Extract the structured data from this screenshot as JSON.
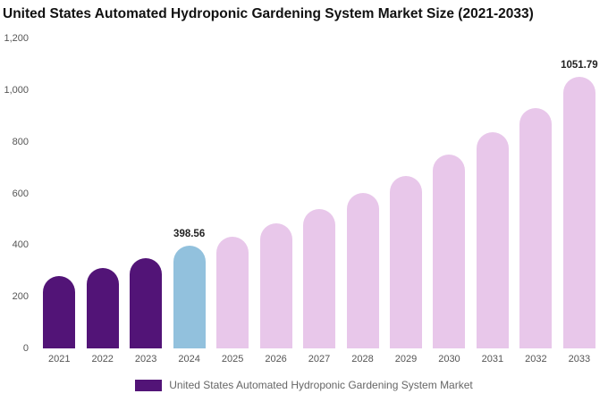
{
  "chart": {
    "title": "United States Automated Hydroponic Gardening System Market Size (2021-2033)",
    "legend_label": "United States Automated Hydroponic Gardening System Market",
    "legend_color": "#521477"
  },
  "chart_data": {
    "type": "bar",
    "title": "United States Automated Hydroponic Gardening System Market Size (2021-2033)",
    "categories": [
      "2021",
      "2022",
      "2023",
      "2024",
      "2025",
      "2026",
      "2027",
      "2028",
      "2029",
      "2030",
      "2031",
      "2032",
      "2033"
    ],
    "values": [
      280,
      313,
      348,
      398.56,
      434,
      483,
      538,
      602,
      668,
      749,
      838,
      932,
      1051.79
    ],
    "bar_colors": [
      "#521477",
      "#521477",
      "#521477",
      "#92C1DD",
      "#E8C7EA",
      "#E8C7EA",
      "#E8C7EA",
      "#E8C7EA",
      "#E8C7EA",
      "#E8C7EA",
      "#E8C7EA",
      "#E8C7EA",
      "#E8C7EA"
    ],
    "data_labels": {
      "2024": "398.56",
      "2033": "1051.79"
    },
    "xlabel": "",
    "ylabel": "",
    "ylim": [
      0,
      1200
    ],
    "yticks": [
      0,
      200,
      400,
      600,
      800,
      1000,
      1200
    ],
    "ytick_labels": [
      "0",
      "200",
      "400",
      "600",
      "800",
      "1,000",
      "1,200"
    ],
    "grid": false,
    "legend_position": "bottom",
    "legend": [
      {
        "label": "United States Automated Hydroponic Gardening System Market",
        "color": "#521477"
      }
    ]
  }
}
